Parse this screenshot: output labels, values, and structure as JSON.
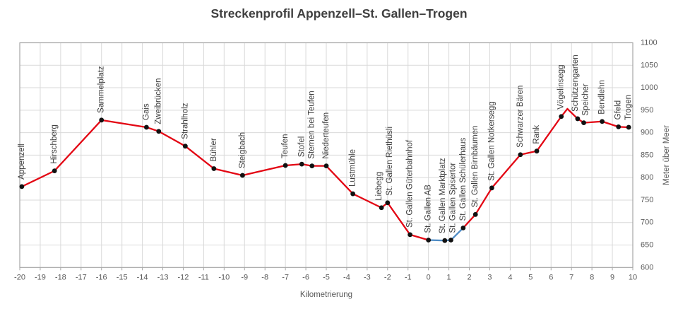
{
  "chart_data": {
    "type": "line",
    "title": "Streckenprofil Appenzell–St. Gallen–Trogen",
    "xlabel": "Kilometrierung",
    "ylabel": "Meter über Meer",
    "xlim": [
      -20,
      10
    ],
    "x_tick_step": 1,
    "ylim": [
      600,
      1100
    ],
    "y_tick_step": 50,
    "grid": true,
    "legend": "none",
    "styles": {
      "main_line_color": "#e30613",
      "city_segment_color": "#4e8bc4",
      "marker_color": "#111111",
      "grid_color": "#d9d9d9",
      "border_color": "#a6a6a6",
      "marker": "circle"
    },
    "points": [
      {
        "label": "Appenzell",
        "km": -19.9,
        "elevation_m": 780,
        "marker": true,
        "segment_to_next": "red"
      },
      {
        "label": "Hirschberg",
        "km": -18.3,
        "elevation_m": 815,
        "marker": true,
        "segment_to_next": "red"
      },
      {
        "label": "Sammelplatz",
        "km": -16.0,
        "elevation_m": 928,
        "marker": true,
        "segment_to_next": "red"
      },
      {
        "label": "Gais",
        "km": -13.8,
        "elevation_m": 912,
        "marker": true,
        "segment_to_next": "red"
      },
      {
        "label": "Zweibrücken",
        "km": -13.2,
        "elevation_m": 903,
        "marker": true,
        "segment_to_next": "red"
      },
      {
        "label": "Strahlholz",
        "km": -11.9,
        "elevation_m": 870,
        "marker": true,
        "segment_to_next": "red"
      },
      {
        "label": "Bühler",
        "km": -10.5,
        "elevation_m": 820,
        "marker": true,
        "segment_to_next": "red"
      },
      {
        "label": "Steigbach",
        "km": -9.1,
        "elevation_m": 805,
        "marker": true,
        "segment_to_next": "red"
      },
      {
        "label": "Teufen",
        "km": -7.0,
        "elevation_m": 827,
        "marker": true,
        "segment_to_next": "red"
      },
      {
        "label": "Stofel",
        "km": -6.2,
        "elevation_m": 830,
        "marker": true,
        "segment_to_next": "red"
      },
      {
        "label": "Sternen bei Teufen",
        "km": -5.7,
        "elevation_m": 826,
        "marker": true,
        "segment_to_next": "red"
      },
      {
        "label": "Niederteufen",
        "km": -5.0,
        "elevation_m": 826,
        "marker": true,
        "segment_to_next": "red"
      },
      {
        "label": "Lustmühle",
        "km": -3.7,
        "elevation_m": 764,
        "marker": true,
        "segment_to_next": "red"
      },
      {
        "label": "Liebegg",
        "km": -2.3,
        "elevation_m": 733,
        "marker": true,
        "segment_to_next": "red"
      },
      {
        "label": "St. Gallen Riethüsli",
        "km": -2.0,
        "elevation_m": 744,
        "marker": true,
        "segment_to_next": "red"
      },
      {
        "label": "St. Gallen Güterbahnhof",
        "km": -0.9,
        "elevation_m": 673,
        "marker": true,
        "segment_to_next": "red"
      },
      {
        "label": "St. Gallen AB",
        "km": 0.0,
        "elevation_m": 661,
        "marker": true,
        "segment_to_next": "blue"
      },
      {
        "label": "St. Gallen Marktplatz",
        "km": 0.8,
        "elevation_m": 660,
        "marker": true,
        "segment_to_next": "blue"
      },
      {
        "label": "St. Gallen Spisertor",
        "km": 1.1,
        "elevation_m": 661,
        "marker": true,
        "segment_to_next": "blue"
      },
      {
        "label": "St. Gallen Schülerhaus",
        "km": 1.7,
        "elevation_m": 688,
        "marker": true,
        "segment_to_next": "red"
      },
      {
        "label": "St. Gallen Birnbäumen",
        "km": 2.3,
        "elevation_m": 718,
        "marker": true,
        "segment_to_next": "red"
      },
      {
        "label": "St. Gallen Notkersegg",
        "km": 3.1,
        "elevation_m": 777,
        "marker": true,
        "segment_to_next": "red"
      },
      {
        "label": "Schwarzer Bären",
        "km": 4.5,
        "elevation_m": 851,
        "marker": true,
        "segment_to_next": "red"
      },
      {
        "label": "Rank",
        "km": 5.3,
        "elevation_m": 859,
        "marker": true,
        "segment_to_next": "red"
      },
      {
        "label": "Vögelinsegg",
        "km": 6.5,
        "elevation_m": 936,
        "marker": true,
        "segment_to_next": "red"
      },
      {
        "label": "",
        "km": 6.8,
        "elevation_m": 953,
        "marker": false,
        "segment_to_next": "red"
      },
      {
        "label": "Schützengarten",
        "km": 7.3,
        "elevation_m": 931,
        "marker": true,
        "segment_to_next": "red"
      },
      {
        "label": "Speicher",
        "km": 7.6,
        "elevation_m": 922,
        "marker": true,
        "segment_to_next": "red"
      },
      {
        "label": "Bendlehn",
        "km": 8.5,
        "elevation_m": 925,
        "marker": true,
        "segment_to_next": "red"
      },
      {
        "label": "Gfeld",
        "km": 9.3,
        "elevation_m": 913,
        "marker": true,
        "segment_to_next": "red"
      },
      {
        "label": "Trogen",
        "km": 9.8,
        "elevation_m": 912,
        "marker": true,
        "segment_to_next": null
      }
    ]
  }
}
